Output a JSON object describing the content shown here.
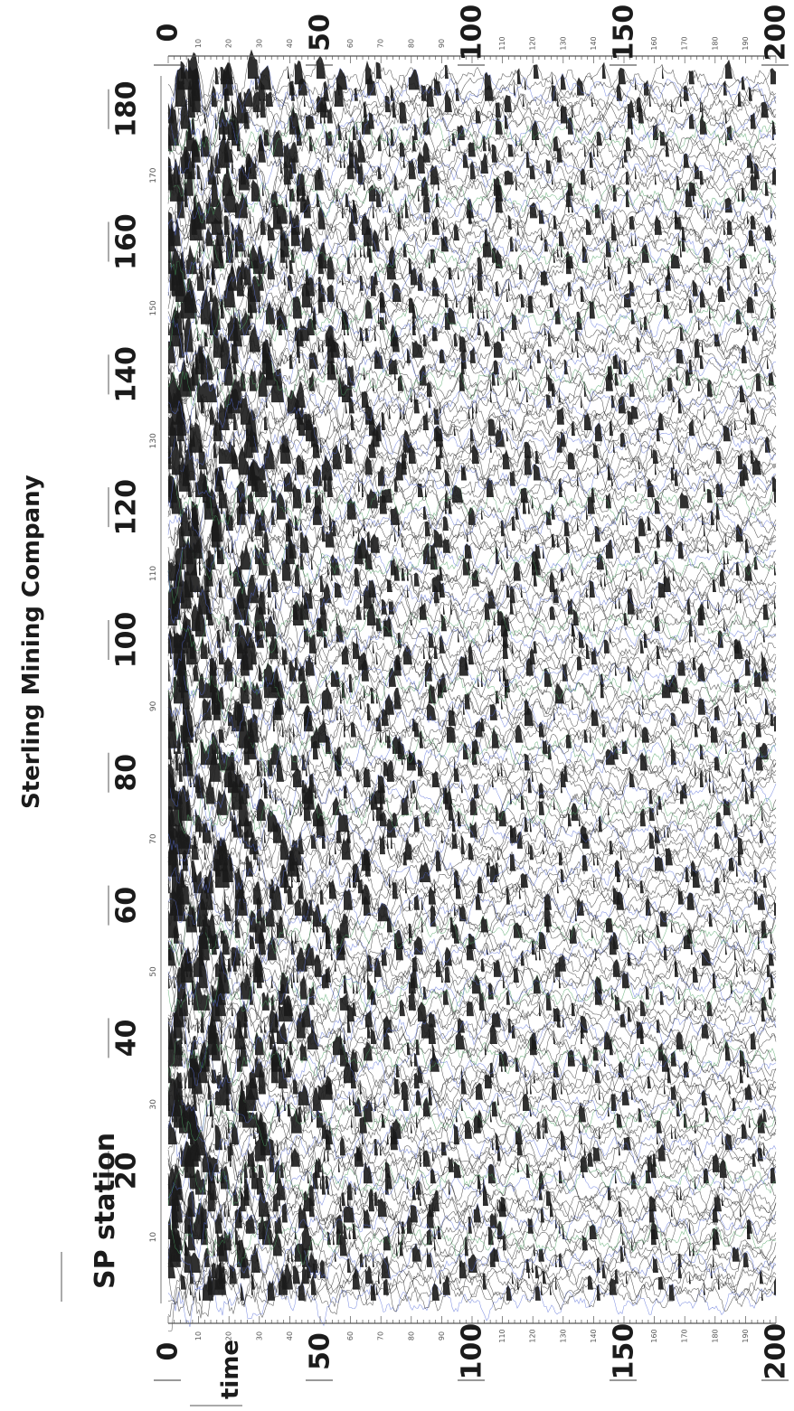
{
  "chart_data": {
    "type": "seismic-section",
    "title": "Sterling Mining Company",
    "xlabel": "SP station",
    "ylabel": "time",
    "x_major_ticks": [
      "20",
      "40",
      "60",
      "80",
      "100",
      "120",
      "140",
      "160",
      "180"
    ],
    "x_minor_ticks": [
      "10",
      "30",
      "50",
      "70",
      "90",
      "110",
      "130",
      "150",
      "170"
    ],
    "xlim": [
      0,
      185
    ],
    "time_major_ticks": [
      "0",
      "50",
      "100",
      "150",
      "200"
    ],
    "time_minor_ticks": [
      "10",
      "20",
      "30",
      "40",
      "60",
      "70",
      "80",
      "90",
      "110",
      "120",
      "130",
      "140",
      "160",
      "170",
      "180",
      "190"
    ],
    "tlim": [
      0,
      200
    ],
    "grid": false,
    "colors": {
      "trace": "#222222",
      "fill": "#1a1a1a",
      "paper": "#ffffff",
      "blue_tint": "#5a6fd8",
      "green_tint": "#4aa060"
    }
  }
}
